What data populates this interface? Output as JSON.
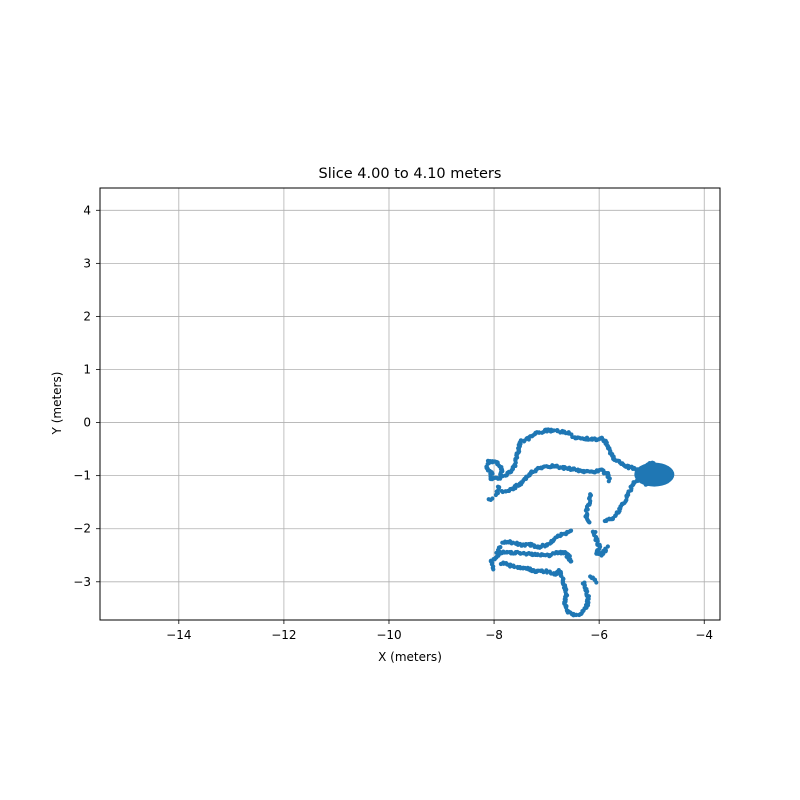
{
  "chart_data": {
    "type": "scatter",
    "title": "Slice 4.00 to 4.10 meters",
    "xlabel": "X (meters)",
    "ylabel": "Y (meters)",
    "xlim": [
      -15.5,
      -3.7
    ],
    "ylim": [
      -3.72,
      4.42
    ],
    "xticks": [
      -14,
      -12,
      -10,
      -8,
      -6,
      -4
    ],
    "xtick_labels": [
      "−14",
      "−12",
      "−10",
      "−8",
      "−6",
      "−4"
    ],
    "yticks": [
      4,
      3,
      2,
      1,
      0,
      -1,
      -2,
      -3
    ],
    "ytick_labels": [
      "4",
      "3",
      "2",
      "1",
      "0",
      "−1",
      "−2",
      "−3"
    ],
    "grid": true,
    "marker_color": "#1f77b4",
    "series": [
      {
        "points_description": "point cloud outline",
        "paths": [
          [
            [
              -8.05,
              -0.95
            ],
            [
              -8.15,
              -0.85
            ],
            [
              -8.1,
              -0.72
            ],
            [
              -7.95,
              -0.75
            ],
            [
              -7.85,
              -0.9
            ],
            [
              -7.9,
              -1.05
            ],
            [
              -8.05,
              -1.05
            ],
            [
              -8.05,
              -0.95
            ]
          ],
          [
            [
              -7.85,
              -1.0
            ],
            [
              -7.7,
              -0.95
            ],
            [
              -7.6,
              -0.8
            ],
            [
              -7.55,
              -0.55
            ],
            [
              -7.5,
              -0.35
            ],
            [
              -7.35,
              -0.3
            ],
            [
              -7.2,
              -0.2
            ],
            [
              -7.0,
              -0.15
            ],
            [
              -6.8,
              -0.15
            ],
            [
              -6.6,
              -0.2
            ],
            [
              -6.45,
              -0.28
            ],
            [
              -6.25,
              -0.3
            ],
            [
              -6.05,
              -0.32
            ],
            [
              -5.95,
              -0.3
            ],
            [
              -5.85,
              -0.4
            ],
            [
              -5.8,
              -0.55
            ],
            [
              -5.7,
              -0.7
            ],
            [
              -5.55,
              -0.8
            ],
            [
              -5.4,
              -0.85
            ],
            [
              -5.25,
              -0.9
            ],
            [
              -5.1,
              -0.9
            ],
            [
              -4.95,
              -0.85
            ],
            [
              -4.8,
              -0.9
            ],
            [
              -4.65,
              -0.95
            ]
          ],
          [
            [
              -7.85,
              -1.3
            ],
            [
              -7.65,
              -1.25
            ],
            [
              -7.5,
              -1.15
            ],
            [
              -7.3,
              -0.95
            ],
            [
              -7.1,
              -0.85
            ],
            [
              -6.9,
              -0.82
            ],
            [
              -6.7,
              -0.85
            ],
            [
              -6.5,
              -0.88
            ],
            [
              -6.3,
              -0.92
            ],
            [
              -6.1,
              -0.92
            ],
            [
              -5.95,
              -0.9
            ],
            [
              -5.85,
              -0.97
            ],
            [
              -5.8,
              -1.1
            ]
          ],
          [
            [
              -5.2,
              -1.0
            ],
            [
              -5.35,
              -1.15
            ],
            [
              -5.45,
              -1.35
            ],
            [
              -5.55,
              -1.55
            ],
            [
              -5.65,
              -1.7
            ],
            [
              -5.75,
              -1.8
            ],
            [
              -5.9,
              -1.85
            ]
          ],
          [
            [
              -4.65,
              -1.05
            ],
            [
              -4.8,
              -1.1
            ],
            [
              -4.95,
              -1.15
            ],
            [
              -5.1,
              -1.15
            ],
            [
              -5.25,
              -1.05
            ],
            [
              -5.2,
              -0.9
            ],
            [
              -5.0,
              -0.75
            ],
            [
              -4.85,
              -0.85
            ]
          ],
          [
            [
              -6.15,
              -1.35
            ],
            [
              -6.2,
              -1.55
            ],
            [
              -6.25,
              -1.75
            ],
            [
              -6.2,
              -1.9
            ]
          ],
          [
            [
              -6.1,
              -2.05
            ],
            [
              -6.05,
              -2.2
            ],
            [
              -6.0,
              -2.35
            ],
            [
              -6.05,
              -2.45
            ],
            [
              -5.95,
              -2.5
            ],
            [
              -5.85,
              -2.35
            ]
          ],
          [
            [
              -8.1,
              -1.45
            ],
            [
              -8.05,
              -1.45
            ]
          ],
          [
            [
              -7.95,
              -1.35
            ],
            [
              -7.9,
              -1.2
            ]
          ],
          [
            [
              -7.85,
              -2.25
            ],
            [
              -7.7,
              -2.25
            ],
            [
              -7.5,
              -2.3
            ],
            [
              -7.3,
              -2.3
            ],
            [
              -7.15,
              -2.35
            ],
            [
              -7.0,
              -2.3
            ],
            [
              -6.85,
              -2.2
            ],
            [
              -6.7,
              -2.1
            ],
            [
              -6.55,
              -2.05
            ]
          ],
          [
            [
              -7.9,
              -2.35
            ],
            [
              -7.95,
              -2.55
            ],
            [
              -8.05,
              -2.6
            ],
            [
              -8.0,
              -2.75
            ]
          ],
          [
            [
              -7.95,
              -2.45
            ],
            [
              -7.75,
              -2.45
            ],
            [
              -7.5,
              -2.45
            ],
            [
              -7.3,
              -2.48
            ],
            [
              -7.1,
              -2.5
            ],
            [
              -6.95,
              -2.5
            ],
            [
              -6.8,
              -2.45
            ],
            [
              -6.65,
              -2.45
            ],
            [
              -6.55,
              -2.6
            ]
          ],
          [
            [
              -7.85,
              -2.65
            ],
            [
              -7.65,
              -2.7
            ],
            [
              -7.4,
              -2.75
            ],
            [
              -7.2,
              -2.8
            ],
            [
              -7.0,
              -2.8
            ],
            [
              -6.85,
              -2.85
            ],
            [
              -6.75,
              -2.8
            ],
            [
              -6.7,
              -2.95
            ],
            [
              -6.65,
              -3.1
            ],
            [
              -6.62,
              -3.25
            ],
            [
              -6.65,
              -3.4
            ],
            [
              -6.6,
              -3.55
            ],
            [
              -6.5,
              -3.62
            ],
            [
              -6.35,
              -3.6
            ],
            [
              -6.25,
              -3.5
            ],
            [
              -6.2,
              -3.3
            ],
            [
              -6.25,
              -3.15
            ],
            [
              -6.3,
              -3.0
            ]
          ],
          [
            [
              -6.6,
              -2.45
            ],
            [
              -6.55,
              -2.62
            ]
          ],
          [
            [
              -6.15,
              -2.9
            ],
            [
              -6.05,
              -3.0
            ]
          ]
        ]
      }
    ]
  }
}
